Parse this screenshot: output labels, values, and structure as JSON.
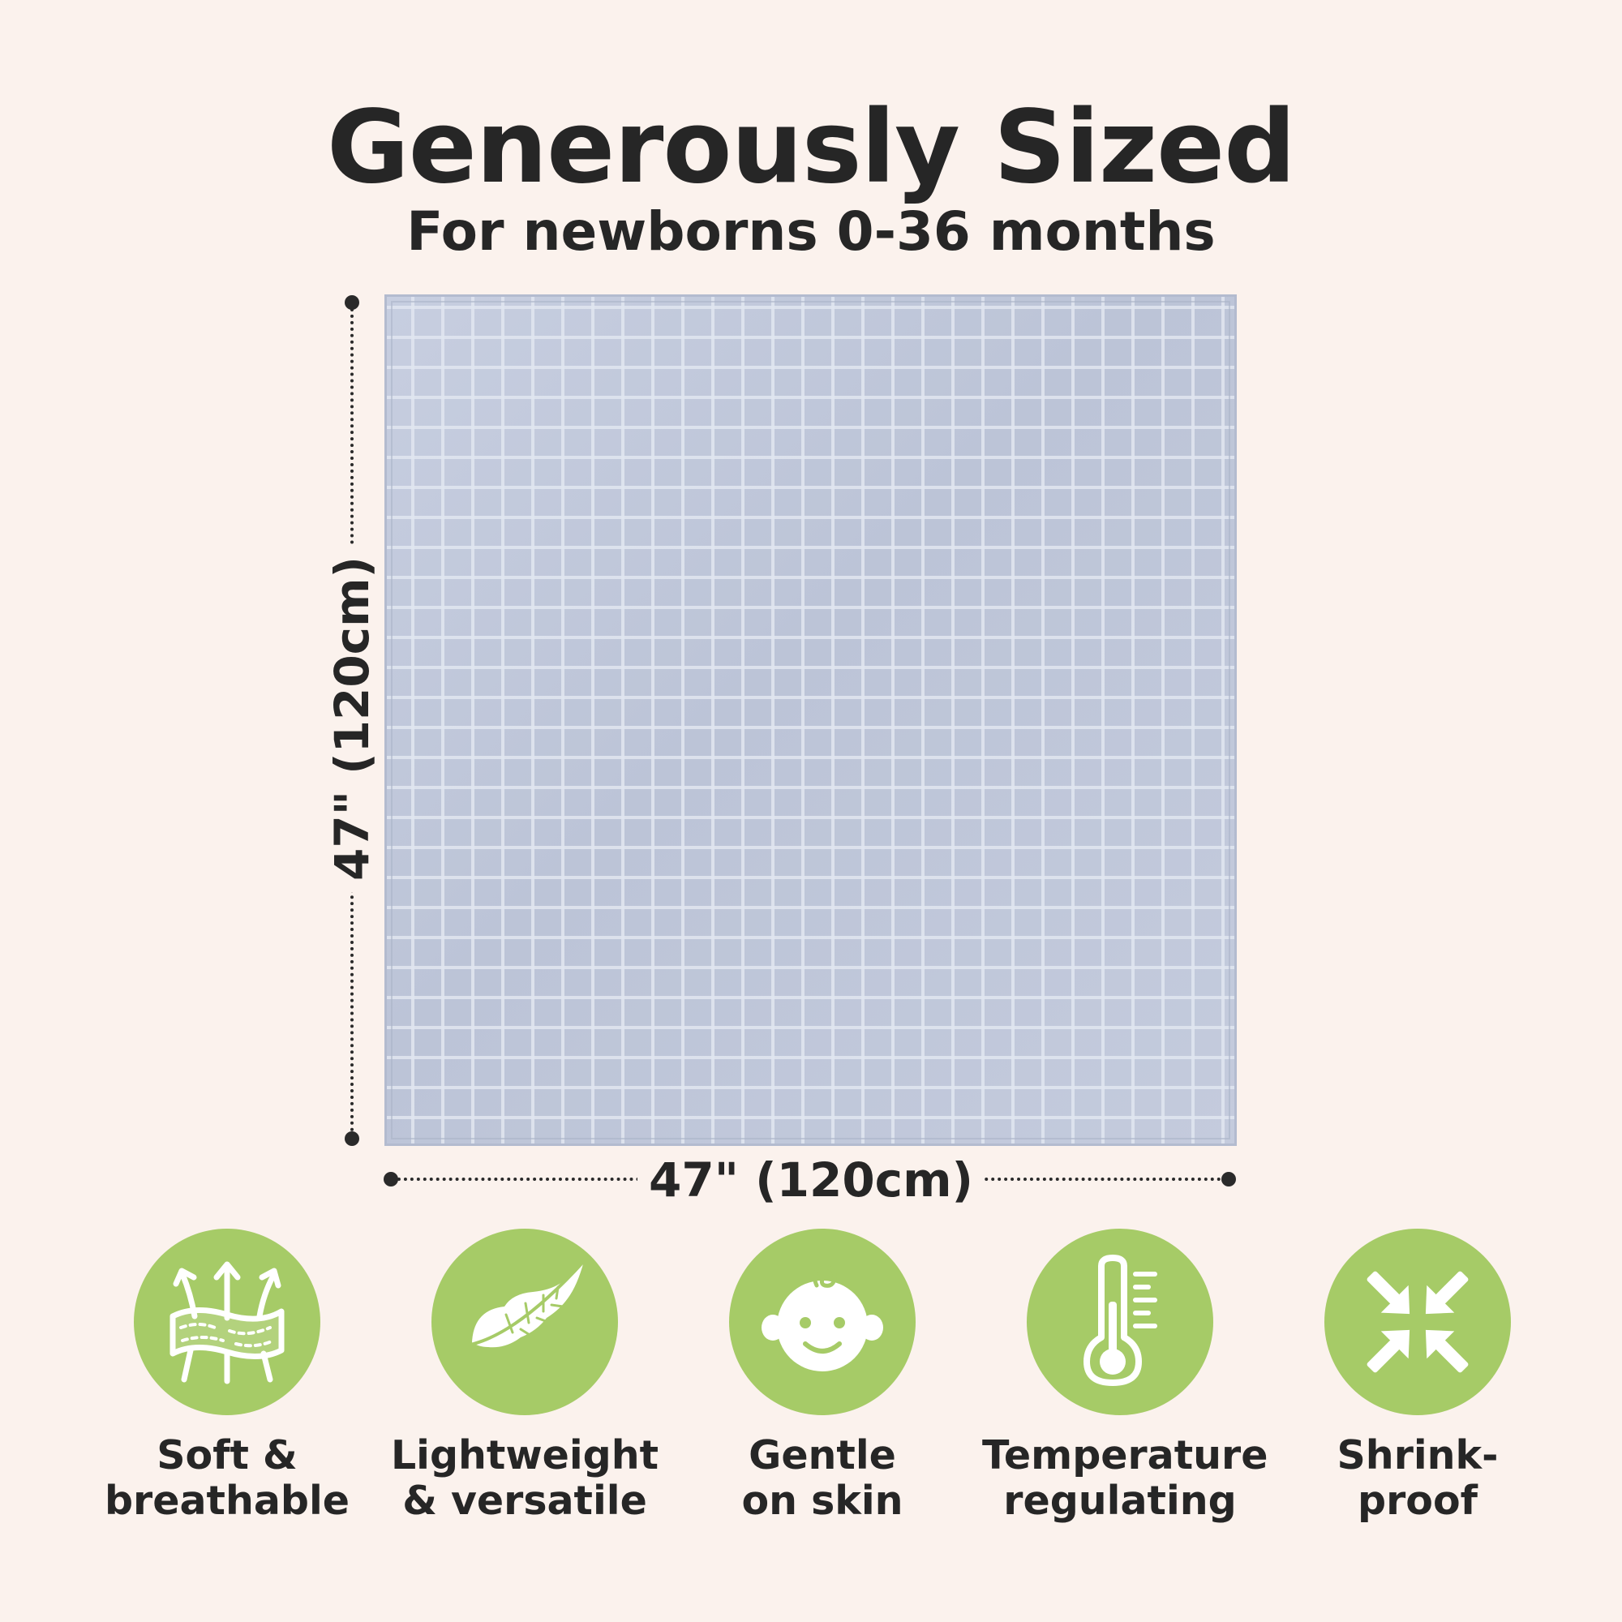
{
  "header": {
    "title": "Generously Sized",
    "subtitle": "For newborns 0-36 months"
  },
  "dimensions": {
    "height_label": "47\" (120cm)",
    "width_label": "47\" (120cm)"
  },
  "colors": {
    "background": "#fbf2ed",
    "icon_circle": "#a6cb67",
    "blanket": "#bfc7d9",
    "text": "#262626"
  },
  "features": [
    {
      "icon": "breathable-fabric-icon",
      "line1": "Soft &",
      "line2": "breathable"
    },
    {
      "icon": "feather-icon",
      "line1": "Lightweight",
      "line2": "& versatile"
    },
    {
      "icon": "baby-face-icon",
      "line1": "Gentle",
      "line2": "on skin"
    },
    {
      "icon": "thermometer-icon",
      "line1": "Temperature",
      "line2": "regulating"
    },
    {
      "icon": "shrink-arrows-icon",
      "line1": "Shrink-",
      "line2": "proof"
    }
  ]
}
